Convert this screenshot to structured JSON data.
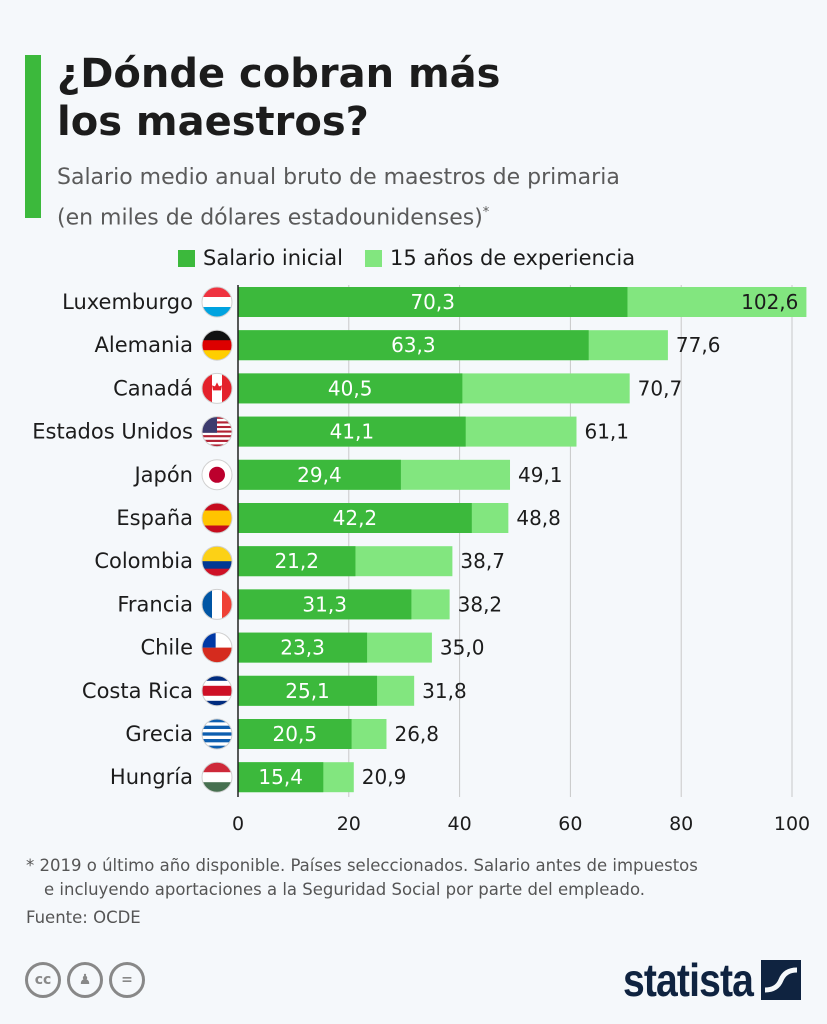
{
  "title": [
    "¿Dónde cobran más",
    "los maestros?"
  ],
  "subtitle": [
    "Salario medio anual bruto de maestros de primaria",
    "(en miles de dólares estadounidenses)"
  ],
  "subtitle_mark": "*",
  "colors": {
    "initial": "#3cb93c",
    "experienced": "#82e67f",
    "accent": "#3cb93c"
  },
  "chart_data": {
    "type": "bar",
    "orientation": "horizontal",
    "stacked": "overlay",
    "categories": [
      "Luxemburgo",
      "Alemania",
      "Canadá",
      "Estados Unidos",
      "Japón",
      "España",
      "Colombia",
      "Francia",
      "Chile",
      "Costa Rica",
      "Grecia",
      "Hungría"
    ],
    "series": [
      {
        "name": "Salario inicial",
        "values": [
          70.3,
          63.3,
          40.5,
          41.1,
          29.4,
          42.2,
          21.2,
          31.3,
          23.3,
          25.1,
          20.5,
          15.4
        ],
        "labels": [
          "70,3",
          "63,3",
          "40,5",
          "41,1",
          "29,4",
          "42,2",
          "21,2",
          "31,3",
          "23,3",
          "25,1",
          "20,5",
          "15,4"
        ]
      },
      {
        "name": "15 años de experiencia",
        "values": [
          102.6,
          77.6,
          70.7,
          61.1,
          49.1,
          48.8,
          38.7,
          38.2,
          35.0,
          31.8,
          26.8,
          20.9
        ],
        "labels": [
          "102,6",
          "77,6",
          "70,7",
          "61,1",
          "49,1",
          "48,8",
          "38,7",
          "38,2",
          "35,0",
          "31,8",
          "26,8",
          "20,9"
        ]
      }
    ],
    "xlim": [
      0,
      100
    ],
    "xticks": [
      0,
      20,
      40,
      60,
      80,
      100
    ],
    "xtick_labels": [
      "0",
      "20",
      "40",
      "60",
      "80",
      "100"
    ],
    "grid": true,
    "legend": "top"
  },
  "flags": [
    {
      "icon": "luxembourg-flag-icon",
      "type": "h",
      "colors": [
        "#ef3340",
        "#ffffff",
        "#00a3e0"
      ]
    },
    {
      "icon": "germany-flag-icon",
      "type": "h",
      "colors": [
        "#111111",
        "#dd0000",
        "#ffce00"
      ]
    },
    {
      "icon": "canada-flag-icon",
      "type": "v",
      "colors": [
        "#e4212b",
        "#ffffff",
        "#e4212b"
      ]
    },
    {
      "icon": "usa-flag-icon",
      "type": "us",
      "colors": [
        "#b22234",
        "#ffffff",
        "#3c3b6e"
      ]
    },
    {
      "icon": "japan-flag-icon",
      "type": "dot",
      "colors": [
        "#ffffff",
        "#bc002d"
      ]
    },
    {
      "icon": "spain-flag-icon",
      "type": "h",
      "colors": [
        "#c60b1e",
        "#ffc400",
        "#ffc400",
        "#c60b1e"
      ]
    },
    {
      "icon": "colombia-flag-icon",
      "type": "h",
      "colors": [
        "#fcd116",
        "#fcd116",
        "#003893",
        "#ce1126"
      ]
    },
    {
      "icon": "france-flag-icon",
      "type": "v",
      "colors": [
        "#0055a4",
        "#ffffff",
        "#ef4135"
      ]
    },
    {
      "icon": "chile-flag-icon",
      "type": "cl",
      "colors": [
        "#ffffff",
        "#d52b1e",
        "#0039a6"
      ]
    },
    {
      "icon": "costa-rica-flag-icon",
      "type": "h",
      "colors": [
        "#002b7f",
        "#ffffff",
        "#ce1126",
        "#ce1126",
        "#ffffff",
        "#002b7f"
      ]
    },
    {
      "icon": "greece-flag-icon",
      "type": "h",
      "colors": [
        "#0d5eaf",
        "#ffffff",
        "#0d5eaf",
        "#ffffff",
        "#0d5eaf",
        "#ffffff",
        "#0d5eaf",
        "#ffffff",
        "#0d5eaf"
      ]
    },
    {
      "icon": "hungary-flag-icon",
      "type": "h",
      "colors": [
        "#ce2939",
        "#ffffff",
        "#477050"
      ]
    }
  ],
  "footnote": [
    "* 2019 o último año disponible. Países seleccionados. Salario antes de impuestos",
    "e incluyendo aportaciones a la Seguridad Social por parte del empleado."
  ],
  "source": "Fuente: OCDE",
  "license_icons": [
    "cc",
    "by",
    "nd"
  ],
  "brand": "statista"
}
